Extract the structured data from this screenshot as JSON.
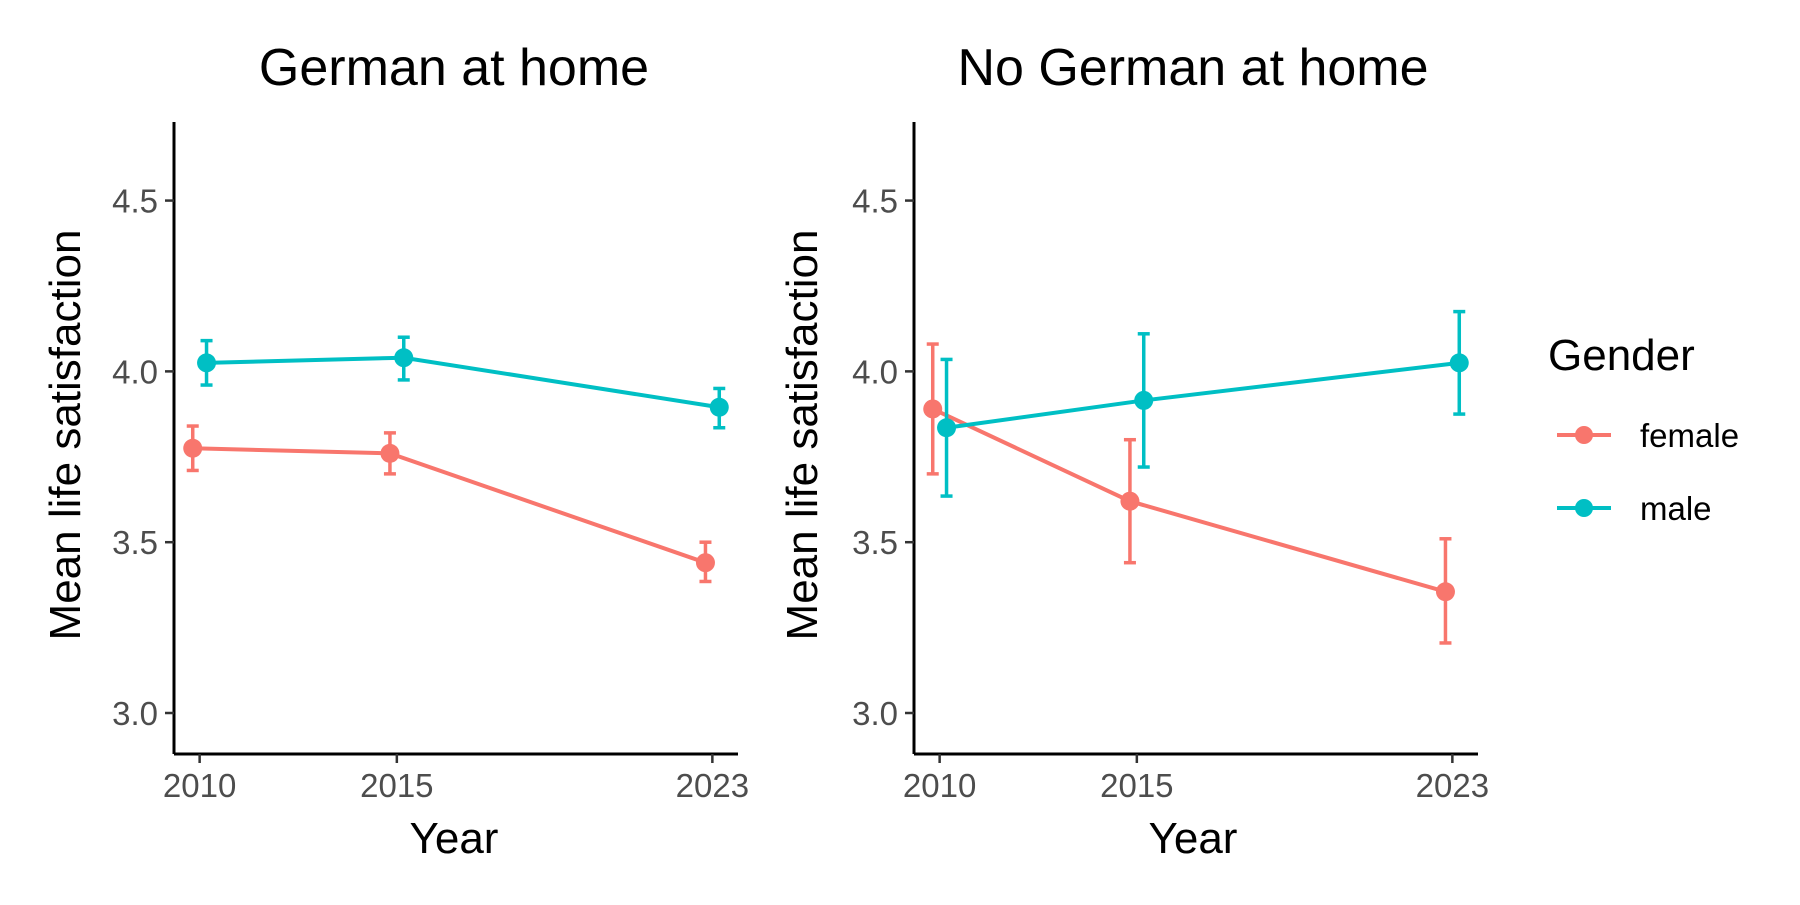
{
  "colors": {
    "female": "#F8766D",
    "male": "#00BFC4"
  },
  "legend": {
    "title": "Gender",
    "items": [
      {
        "label": "female",
        "color": "#F8766D"
      },
      {
        "label": "male",
        "color": "#00BFC4"
      }
    ]
  },
  "chart_data": [
    {
      "type": "line",
      "title": "German at home",
      "xlabel": "Year",
      "ylabel": "Mean life satisfaction",
      "x_ticks": [
        2010,
        2015,
        2023
      ],
      "y_ticks": [
        "3.0",
        "3.5",
        "4.0",
        "4.5"
      ],
      "ylim": [
        2.88,
        4.73
      ],
      "xlim": [
        2009.35,
        2023.65
      ],
      "grid": false,
      "error_bars": true,
      "series": [
        {
          "name": "female",
          "color": "#F8766D",
          "points": [
            {
              "x": 2010,
              "y": 3.775,
              "lo": 3.71,
              "hi": 3.84
            },
            {
              "x": 2015,
              "y": 3.76,
              "lo": 3.7,
              "hi": 3.82
            },
            {
              "x": 2023,
              "y": 3.44,
              "lo": 3.385,
              "hi": 3.5
            }
          ]
        },
        {
          "name": "male",
          "color": "#00BFC4",
          "points": [
            {
              "x": 2010,
              "y": 4.025,
              "lo": 3.96,
              "hi": 4.09
            },
            {
              "x": 2015,
              "y": 4.04,
              "lo": 3.975,
              "hi": 4.1
            },
            {
              "x": 2023,
              "y": 3.895,
              "lo": 3.835,
              "hi": 3.95
            }
          ]
        }
      ]
    },
    {
      "type": "line",
      "title": "No German at home",
      "xlabel": "Year",
      "ylabel": "Mean life satisfaction",
      "x_ticks": [
        2010,
        2015,
        2023
      ],
      "y_ticks": [
        "3.0",
        "3.5",
        "4.0",
        "4.5"
      ],
      "ylim": [
        2.88,
        4.73
      ],
      "xlim": [
        2009.35,
        2023.65
      ],
      "grid": false,
      "error_bars": true,
      "series": [
        {
          "name": "female",
          "color": "#F8766D",
          "points": [
            {
              "x": 2010,
              "y": 3.89,
              "lo": 3.7,
              "hi": 4.08
            },
            {
              "x": 2015,
              "y": 3.62,
              "lo": 3.44,
              "hi": 3.8
            },
            {
              "x": 2023,
              "y": 3.355,
              "lo": 3.205,
              "hi": 3.51
            }
          ]
        },
        {
          "name": "male",
          "color": "#00BFC4",
          "points": [
            {
              "x": 2010,
              "y": 3.835,
              "lo": 3.635,
              "hi": 4.035
            },
            {
              "x": 2015,
              "y": 3.915,
              "lo": 3.72,
              "hi": 4.11
            },
            {
              "x": 2023,
              "y": 4.025,
              "lo": 3.875,
              "hi": 4.175
            }
          ]
        }
      ]
    }
  ]
}
